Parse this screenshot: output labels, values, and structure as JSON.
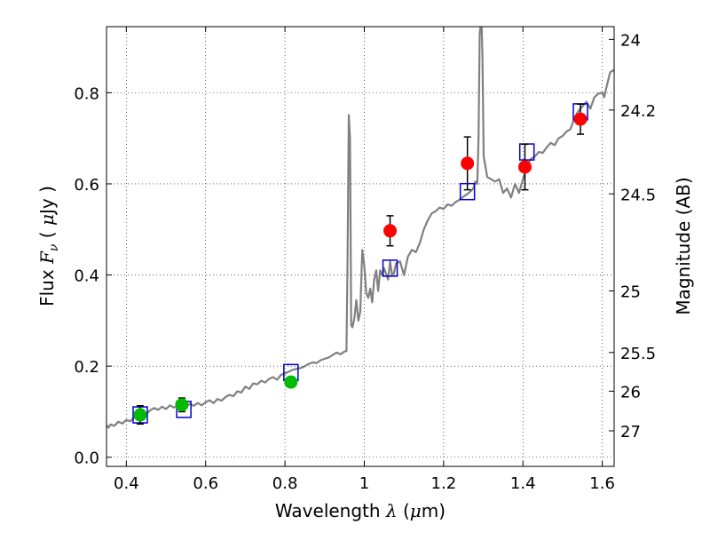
{
  "chart_data": {
    "type": "scatter",
    "title": "",
    "xlabel": {
      "prefix": "Wavelength  ",
      "symbol": "λ",
      "open": " (",
      "unit_greek": "μ",
      "unit": "m)"
    },
    "ylabel": {
      "prefix": "Flux  ",
      "symbol": "F",
      "subscript": "ν",
      "open": "  ( ",
      "unit_greek": "μ",
      "unit": "Jy )"
    },
    "y2label": "Magnitude (AB)",
    "xlim": [
      0.35,
      1.63
    ],
    "ylim": [
      -0.02,
      0.945
    ],
    "grid": true,
    "x_ticks": [
      {
        "value": 0.4,
        "label": "0.4"
      },
      {
        "value": 0.6,
        "label": "0.6"
      },
      {
        "value": 0.8,
        "label": "0.8"
      },
      {
        "value": 1.0,
        "label": "1"
      },
      {
        "value": 1.2,
        "label": "1.2"
      },
      {
        "value": 1.4,
        "label": "1.4"
      },
      {
        "value": 1.6,
        "label": "1.6"
      }
    ],
    "y_ticks": [
      {
        "value": 0.0,
        "label": "0.0"
      },
      {
        "value": 0.2,
        "label": "0.2"
      },
      {
        "value": 0.4,
        "label": "0.4"
      },
      {
        "value": 0.6,
        "label": "0.6"
      },
      {
        "value": 0.8,
        "label": "0.8"
      }
    ],
    "y2_ticks": [
      {
        "label": "24",
        "flux": 0.917
      },
      {
        "label": "24.2",
        "flux": 0.762
      },
      {
        "label": "24.5",
        "flux": 0.578
      },
      {
        "label": "25",
        "flux": 0.365
      },
      {
        "label": "25.5",
        "flux": 0.23
      },
      {
        "label": "26",
        "flux": 0.145
      },
      {
        "label": "27",
        "flux": 0.058
      }
    ],
    "model_spectrum": {
      "color": "#808080",
      "points": [
        [
          0.35,
          0.07
        ],
        [
          0.355,
          0.065
        ],
        [
          0.36,
          0.072
        ],
        [
          0.37,
          0.069
        ],
        [
          0.38,
          0.078
        ],
        [
          0.39,
          0.074
        ],
        [
          0.4,
          0.082
        ],
        [
          0.41,
          0.079
        ],
        [
          0.42,
          0.087
        ],
        [
          0.43,
          0.092
        ],
        [
          0.44,
          0.098
        ],
        [
          0.45,
          0.094
        ],
        [
          0.46,
          0.103
        ],
        [
          0.47,
          0.108
        ],
        [
          0.48,
          0.104
        ],
        [
          0.49,
          0.111
        ],
        [
          0.5,
          0.106
        ],
        [
          0.51,
          0.114
        ],
        [
          0.52,
          0.109
        ],
        [
          0.53,
          0.113
        ],
        [
          0.54,
          0.115
        ],
        [
          0.55,
          0.11
        ],
        [
          0.56,
          0.117
        ],
        [
          0.57,
          0.113
        ],
        [
          0.58,
          0.119
        ],
        [
          0.59,
          0.114
        ],
        [
          0.6,
          0.121
        ],
        [
          0.61,
          0.125
        ],
        [
          0.62,
          0.119
        ],
        [
          0.63,
          0.128
        ],
        [
          0.64,
          0.124
        ],
        [
          0.65,
          0.132
        ],
        [
          0.66,
          0.137
        ],
        [
          0.67,
          0.134
        ],
        [
          0.68,
          0.145
        ],
        [
          0.69,
          0.142
        ],
        [
          0.7,
          0.155
        ],
        [
          0.71,
          0.15
        ],
        [
          0.72,
          0.162
        ],
        [
          0.73,
          0.16
        ],
        [
          0.74,
          0.168
        ],
        [
          0.75,
          0.164
        ],
        [
          0.76,
          0.172
        ],
        [
          0.77,
          0.176
        ],
        [
          0.78,
          0.17
        ],
        [
          0.79,
          0.181
        ],
        [
          0.8,
          0.184
        ],
        [
          0.81,
          0.188
        ],
        [
          0.82,
          0.192
        ],
        [
          0.83,
          0.194
        ],
        [
          0.84,
          0.196
        ],
        [
          0.85,
          0.2
        ],
        [
          0.86,
          0.205
        ],
        [
          0.87,
          0.208
        ],
        [
          0.88,
          0.207
        ],
        [
          0.89,
          0.213
        ],
        [
          0.9,
          0.216
        ],
        [
          0.91,
          0.219
        ],
        [
          0.92,
          0.224
        ],
        [
          0.93,
          0.23
        ],
        [
          0.94,
          0.226
        ],
        [
          0.95,
          0.232
        ],
        [
          0.955,
          0.233
        ],
        [
          0.958,
          0.45
        ],
        [
          0.961,
          0.751
        ],
        [
          0.964,
          0.7
        ],
        [
          0.967,
          0.29
        ],
        [
          0.97,
          0.285
        ],
        [
          0.975,
          0.305
        ],
        [
          0.98,
          0.345
        ],
        [
          0.985,
          0.3
        ],
        [
          0.99,
          0.32
        ],
        [
          0.995,
          0.455
        ],
        [
          1.0,
          0.42
        ],
        [
          1.005,
          0.36
        ],
        [
          1.01,
          0.35
        ],
        [
          1.015,
          0.37
        ],
        [
          1.02,
          0.34
        ],
        [
          1.025,
          0.39
        ],
        [
          1.03,
          0.41
        ],
        [
          1.035,
          0.365
        ],
        [
          1.04,
          0.41
        ],
        [
          1.045,
          0.4
        ],
        [
          1.05,
          0.415
        ],
        [
          1.06,
          0.39
        ],
        [
          1.065,
          0.43
        ],
        [
          1.07,
          0.4
        ],
        [
          1.075,
          0.405
        ],
        [
          1.08,
          0.425
        ],
        [
          1.09,
          0.43
        ],
        [
          1.1,
          0.4
        ],
        [
          1.11,
          0.44
        ],
        [
          1.12,
          0.455
        ],
        [
          1.13,
          0.45
        ],
        [
          1.14,
          0.47
        ],
        [
          1.15,
          0.5
        ],
        [
          1.16,
          0.52
        ],
        [
          1.17,
          0.535
        ],
        [
          1.18,
          0.54
        ],
        [
          1.19,
          0.548
        ],
        [
          1.2,
          0.545
        ],
        [
          1.21,
          0.555
        ],
        [
          1.22,
          0.552
        ],
        [
          1.23,
          0.56
        ],
        [
          1.24,
          0.565
        ],
        [
          1.25,
          0.572
        ],
        [
          1.26,
          0.578
        ],
        [
          1.27,
          0.585
        ],
        [
          1.275,
          0.59
        ],
        [
          1.28,
          0.605
        ],
        [
          1.285,
          0.6
        ],
        [
          1.288,
          0.7
        ],
        [
          1.291,
          0.93
        ],
        [
          1.293,
          0.945
        ],
        [
          1.296,
          0.945
        ],
        [
          1.298,
          0.88
        ],
        [
          1.301,
          0.66
        ],
        [
          1.305,
          0.64
        ],
        [
          1.31,
          0.615
        ],
        [
          1.32,
          0.61
        ],
        [
          1.33,
          0.605
        ],
        [
          1.34,
          0.61
        ],
        [
          1.35,
          0.58
        ],
        [
          1.36,
          0.59
        ],
        [
          1.37,
          0.57
        ],
        [
          1.38,
          0.6
        ],
        [
          1.39,
          0.58
        ],
        [
          1.4,
          0.61
        ],
        [
          1.41,
          0.64
        ],
        [
          1.42,
          0.655
        ],
        [
          1.43,
          0.66
        ],
        [
          1.44,
          0.67
        ],
        [
          1.45,
          0.668
        ],
        [
          1.46,
          0.68
        ],
        [
          1.47,
          0.69
        ],
        [
          1.48,
          0.685
        ],
        [
          1.49,
          0.7
        ],
        [
          1.5,
          0.705
        ],
        [
          1.51,
          0.715
        ],
        [
          1.52,
          0.72
        ],
        [
          1.53,
          0.745
        ],
        [
          1.54,
          0.76
        ],
        [
          1.55,
          0.77
        ],
        [
          1.56,
          0.78
        ],
        [
          1.57,
          0.765
        ],
        [
          1.58,
          0.79
        ],
        [
          1.59,
          0.798
        ],
        [
          1.6,
          0.8
        ],
        [
          1.605,
          0.79
        ],
        [
          1.61,
          0.81
        ],
        [
          1.62,
          0.845
        ],
        [
          1.63,
          0.85
        ]
      ]
    },
    "model_photometry": {
      "color": "#0000cc",
      "points": [
        [
          0.435,
          0.093
        ],
        [
          0.545,
          0.105
        ],
        [
          0.815,
          0.186
        ],
        [
          1.065,
          0.415
        ],
        [
          1.26,
          0.583
        ],
        [
          1.41,
          0.67
        ],
        [
          1.545,
          0.758
        ]
      ]
    },
    "observed_optical": {
      "color": "#00bb00",
      "points": [
        {
          "x": 0.435,
          "y": 0.093,
          "err": 0.02
        },
        {
          "x": 0.54,
          "y": 0.115,
          "err": 0.015
        },
        {
          "x": 0.815,
          "y": 0.165,
          "err": 0.01
        }
      ]
    },
    "observed_nir": {
      "color": "#ff0000",
      "points": [
        {
          "x": 1.065,
          "y": 0.497,
          "err": 0.033
        },
        {
          "x": 1.26,
          "y": 0.645,
          "err": 0.058
        },
        {
          "x": 1.405,
          "y": 0.637,
          "err": 0.05
        },
        {
          "x": 1.545,
          "y": 0.742,
          "err": 0.033
        }
      ]
    }
  }
}
